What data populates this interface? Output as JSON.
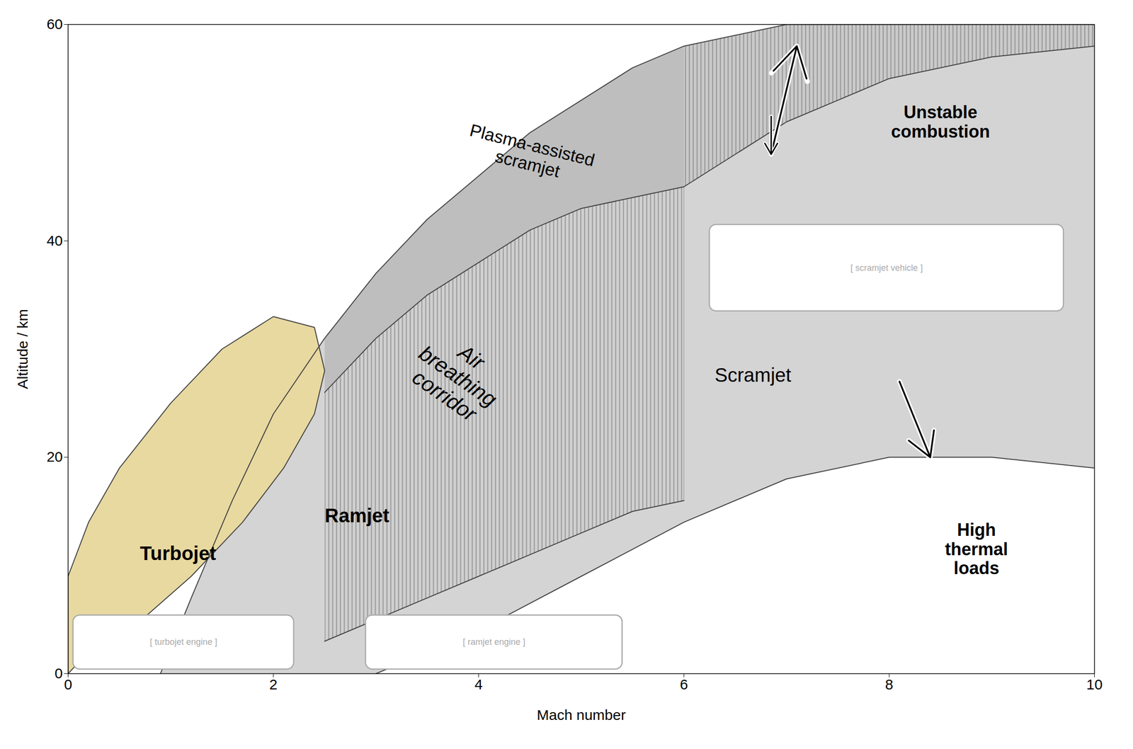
{
  "chart_data": {
    "type": "area",
    "xlabel": "Mach number",
    "ylabel": "Altitude / km",
    "xlim": [
      0,
      10
    ],
    "ylim": [
      0,
      60
    ],
    "xticks": [
      0,
      2,
      4,
      6,
      8,
      10
    ],
    "yticks": [
      0,
      20,
      40,
      60
    ],
    "grid": false,
    "series": [
      {
        "type": "area",
        "color": "#d4d4d4",
        "x": [
          0.9,
          1.2,
          1.6,
          2.0,
          2.5,
          3.0,
          3.5,
          4.0,
          4.5,
          5.0,
          5.5,
          6.0,
          7.0,
          8.0,
          9.0,
          10.0,
          10.0,
          10.0,
          9.0,
          8.0,
          7.0,
          6.0,
          5.0,
          4.0,
          3.0,
          0.9
        ],
        "values": [
          0,
          7,
          16,
          24,
          31,
          37,
          42,
          46,
          50,
          53,
          56,
          58,
          60,
          60,
          60,
          60,
          19,
          19,
          20,
          20,
          18,
          14,
          9,
          4,
          0,
          0
        ]
      },
      {
        "type": "area",
        "color": "#e8d9a0",
        "x": [
          0,
          0,
          0.2,
          0.5,
          1.0,
          1.5,
          2.0,
          2.4,
          2.5,
          2.4,
          2.1,
          1.7,
          1.2,
          0.6,
          0.1,
          0
        ],
        "values": [
          0,
          9,
          14,
          19,
          25,
          30,
          33,
          32,
          28,
          24,
          19,
          14,
          9,
          4,
          1,
          0
        ]
      },
      {
        "type": "area",
        "color": "#bebebe",
        "x": [
          2.5,
          3.0,
          3.5,
          4.0,
          4.5,
          5.0,
          5.5,
          6.0,
          6.0,
          5.5,
          5.0,
          4.5,
          4.0,
          3.5,
          3.0,
          2.5
        ],
        "values": [
          31,
          37,
          42,
          46,
          50,
          53,
          56,
          58,
          45,
          44,
          43,
          41,
          38,
          35,
          31,
          26
        ]
      },
      {
        "type": "area",
        "color": "#d0d0d0",
        "x": [
          2.5,
          3.0,
          3.5,
          4.0,
          4.5,
          5.0,
          5.5,
          6.0,
          6.0,
          5.5,
          5.0,
          4.5,
          4.0,
          3.5,
          3.0,
          2.5
        ],
        "values": [
          26,
          31,
          35,
          38,
          41,
          43,
          44,
          45,
          16,
          15,
          13,
          11,
          9,
          7,
          5,
          3
        ]
      },
      {
        "type": "area",
        "color": "#cacaca",
        "x": [
          6.0,
          6.5,
          7.0,
          7.5,
          8.0,
          9.0,
          10.0,
          10.0,
          9.0,
          8.0,
          7.5,
          7.0,
          6.5,
          6.0
        ],
        "values": [
          58,
          59,
          60,
          60,
          60,
          60,
          60,
          58,
          57,
          55,
          53,
          51,
          48,
          45
        ]
      },
      {
        "type": "line",
        "color": "#444444",
        "x": [
          0.9,
          1.2,
          1.6,
          2.0,
          2.5,
          3.0,
          3.5,
          4.0,
          4.5,
          5.0,
          5.5,
          6.0,
          7.0,
          8.0,
          9.0,
          10.0
        ],
        "values": [
          0,
          7,
          16,
          24,
          31,
          37,
          42,
          46,
          50,
          53,
          56,
          58,
          60,
          60,
          60,
          60
        ]
      },
      {
        "type": "line",
        "color": "#444444",
        "x": [
          3.0,
          4.0,
          5.0,
          6.0,
          7.0,
          8.0,
          9.0,
          10.0
        ],
        "values": [
          0,
          4,
          9,
          14,
          18,
          20,
          20,
          19
        ]
      },
      {
        "type": "line",
        "color": "#444444",
        "x": [
          0,
          0,
          0.2,
          0.5,
          1.0,
          1.5,
          2.0,
          2.4,
          2.5,
          2.4,
          2.1,
          1.7,
          1.2,
          0.6,
          0.1,
          0
        ],
        "values": [
          0,
          9,
          14,
          19,
          25,
          30,
          33,
          32,
          28,
          24,
          19,
          14,
          9,
          4,
          1,
          0
        ]
      },
      {
        "type": "line",
        "color": "#444444",
        "x": [
          2.5,
          3.0,
          3.5,
          4.0,
          4.5,
          5.0,
          5.5,
          6.0
        ],
        "values": [
          26,
          31,
          35,
          38,
          41,
          43,
          44,
          45
        ]
      },
      {
        "type": "line",
        "color": "#444444",
        "x": [
          2.5,
          3.0,
          3.5,
          4.0,
          4.5,
          5.0,
          5.5,
          6.0
        ],
        "values": [
          3,
          5,
          7,
          9,
          11,
          13,
          15,
          16
        ]
      },
      {
        "type": "line",
        "color": "#444444",
        "x": [
          6.0,
          6.5,
          7.0,
          7.5,
          8.0,
          9.0,
          10.0
        ],
        "values": [
          45,
          48,
          51,
          53,
          55,
          57,
          58
        ]
      }
    ],
    "annotations": [
      {
        "text": "Turbojet",
        "x": 0.7,
        "y": 10.5
      },
      {
        "text": "Ramjet",
        "x": 2.5,
        "y": 14
      },
      {
        "text": "Scramjet",
        "x": 6.3,
        "y": 27
      },
      {
        "text": "Plasma-assisted\nscramjet",
        "x": 4.5,
        "y": 48
      },
      {
        "text": "Unstable\ncombustion",
        "x": 8.5,
        "y": 51
      },
      {
        "text": "Air\nbreathing\ncorridor",
        "x": 3.8,
        "y": 27.5
      },
      {
        "text": "High\nthermal\nloads",
        "x": 8.85,
        "y": 14
      }
    ],
    "arrows": [
      {
        "x1": 6.85,
        "y1": 48,
        "x2": 7.1,
        "y2": 58
      },
      {
        "x1": 6.85,
        "y1": 51.5,
        "x2": 6.85,
        "y2": 48
      },
      {
        "x1": 8.1,
        "y1": 27,
        "x2": 8.4,
        "y2": 20
      }
    ],
    "boxes": [
      {
        "text": "[ turbojet engine ]",
        "x0": 0.05,
        "y0": 0.4,
        "w": 2.15,
        "h": 5.0,
        "color": "#aaaaaa"
      },
      {
        "text": "[ ramjet engine ]",
        "x0": 2.9,
        "y0": 0.4,
        "w": 2.5,
        "h": 5.0,
        "color": "#aaaaaa"
      },
      {
        "text": "[ scramjet vehicle ]",
        "x0": 6.25,
        "y0": 33.5,
        "w": 3.45,
        "h": 8.0,
        "color": "#aaaaaa"
      }
    ]
  }
}
